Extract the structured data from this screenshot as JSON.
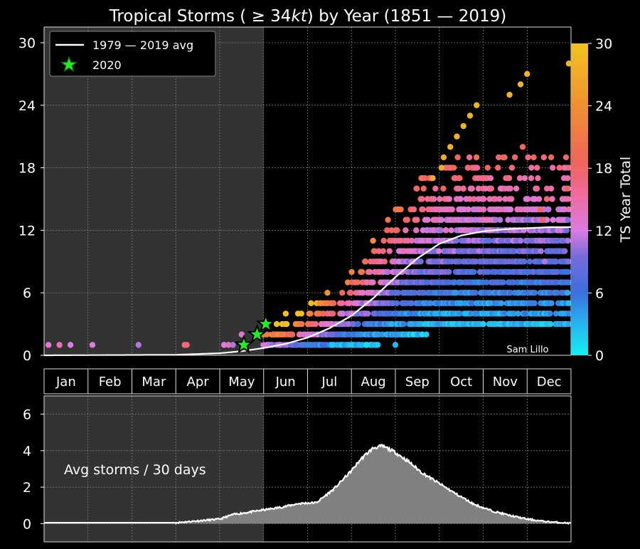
{
  "title": "Tropical Storms ( ≥ 34kt) by Year (1851 — 2019)",
  "title_parts": {
    "pre": "Tropical Storms ( ≥ 34",
    "kt": "kt",
    "post": ") by Year (1851 — 2019)"
  },
  "credit": "Sam Lillo",
  "legend": {
    "avg_label": "1979 — 2019 avg",
    "star_label": "2020"
  },
  "colors": {
    "background": "#000000",
    "shade": "#333333",
    "avg_line": "#ffffff",
    "star_fill": "#22ee22",
    "fill_area": "#808080"
  },
  "chart_data": [
    {
      "type": "scatter",
      "title": "Tropical Storms ( ≥ 34kt) by Year (1851 — 2019)",
      "x_unit": "month of year (1 = Jan 1)",
      "xlim": [
        1,
        13
      ],
      "ylim": [
        0,
        31.5
      ],
      "yticks": [
        0,
        6,
        12,
        18,
        24,
        30
      ],
      "month_labels": [
        "Jan",
        "Feb",
        "Mar",
        "Apr",
        "May",
        "Jun",
        "Jul",
        "Aug",
        "Sep",
        "Oct",
        "Nov",
        "Dec"
      ],
      "shaded_until_month": 6.0,
      "grid": true,
      "legend_position": "top-left",
      "colorbar": {
        "label": "TS Year Total",
        "range": [
          0,
          30
        ],
        "ticks": [
          0,
          6,
          12,
          18,
          24,
          30
        ]
      },
      "avg_1979_2019": {
        "x": [
          1,
          4,
          5,
          5.5,
          6,
          6.5,
          7,
          7.5,
          8,
          8.5,
          9,
          9.5,
          10,
          10.5,
          11,
          11.5,
          12,
          12.5,
          13
        ],
        "y": [
          0,
          0.05,
          0.2,
          0.4,
          0.7,
          1.1,
          1.7,
          2.6,
          3.8,
          5.5,
          7.5,
          9.3,
          10.7,
          11.5,
          11.9,
          12.1,
          12.2,
          12.3,
          12.3
        ]
      },
      "year_2020": {
        "x": [
          5.55,
          5.85,
          6.05
        ],
        "y": [
          1,
          2,
          3
        ]
      },
      "scatter_points": [
        {
          "x": 1.1,
          "y": 1,
          "c": 13
        },
        {
          "x": 1.35,
          "y": 1,
          "c": 14
        },
        {
          "x": 1.6,
          "y": 1,
          "c": 12
        },
        {
          "x": 2.1,
          "y": 1,
          "c": 12
        },
        {
          "x": 3.15,
          "y": 1,
          "c": 11
        },
        {
          "x": 4.2,
          "y": 1,
          "c": 16
        },
        {
          "x": 4.25,
          "y": 1,
          "c": 17
        },
        {
          "x": 5.1,
          "y": 1,
          "c": 12
        },
        {
          "x": 5.2,
          "y": 1,
          "c": 14
        },
        {
          "x": 5.3,
          "y": 1,
          "c": 11
        },
        {
          "x": 5.5,
          "y": 2,
          "c": 13
        },
        {
          "x": 10.25,
          "y": 20,
          "c": 28
        },
        {
          "x": 10.4,
          "y": 21,
          "c": 28
        },
        {
          "x": 10.55,
          "y": 22,
          "c": 28
        },
        {
          "x": 10.7,
          "y": 23,
          "c": 28
        },
        {
          "x": 10.85,
          "y": 24,
          "c": 28
        },
        {
          "x": 11.6,
          "y": 25,
          "c": 28
        },
        {
          "x": 11.85,
          "y": 26,
          "c": 28
        },
        {
          "x": 12.0,
          "y": 27,
          "c": 28
        },
        {
          "x": 12.95,
          "y": 28,
          "c": 28
        },
        {
          "x": 10.05,
          "y": 18,
          "c": 27
        },
        {
          "x": 10.1,
          "y": 19,
          "c": 27
        },
        {
          "x": 9.85,
          "y": 17,
          "c": 27
        },
        {
          "x": 11.9,
          "y": 20,
          "c": 19
        },
        {
          "x": 12.15,
          "y": 19,
          "c": 19
        },
        {
          "x": 11.45,
          "y": 19,
          "c": 19
        },
        {
          "x": 12.9,
          "y": 16,
          "c": 19
        },
        {
          "x": 12.45,
          "y": 15,
          "c": 18
        },
        {
          "x": 12.3,
          "y": 14,
          "c": 18
        },
        {
          "x": 12.35,
          "y": 13,
          "c": 18
        },
        {
          "x": 12.3,
          "y": 11,
          "c": 11
        },
        {
          "x": 12.4,
          "y": 9,
          "c": 11
        },
        {
          "x": 11.95,
          "y": 4,
          "c": 6
        },
        {
          "x": 9.0,
          "y": 1,
          "c": 3
        }
      ]
    },
    {
      "type": "area",
      "annotation": "Avg storms / 30 days",
      "xlim": [
        1,
        13
      ],
      "ylim": [
        -1,
        7
      ],
      "yticks": [
        0,
        2,
        4,
        6
      ],
      "x": [
        1,
        4,
        4.5,
        5,
        5.3,
        5.6,
        6,
        6.4,
        6.8,
        7.2,
        7.6,
        8.0,
        8.2,
        8.4,
        8.5,
        8.6,
        8.7,
        8.8,
        9.0,
        9.3,
        9.6,
        10.0,
        10.4,
        10.8,
        11.2,
        11.6,
        12.0,
        12.4,
        12.8,
        13.0
      ],
      "y": [
        0.05,
        0.05,
        0.15,
        0.25,
        0.5,
        0.6,
        0.75,
        0.9,
        1.1,
        1.15,
        1.9,
        2.9,
        3.5,
        3.95,
        4.15,
        4.2,
        4.25,
        4.15,
        3.9,
        3.4,
        2.8,
        2.2,
        1.6,
        1.05,
        0.7,
        0.45,
        0.25,
        0.12,
        0.05,
        0.02
      ]
    }
  ]
}
